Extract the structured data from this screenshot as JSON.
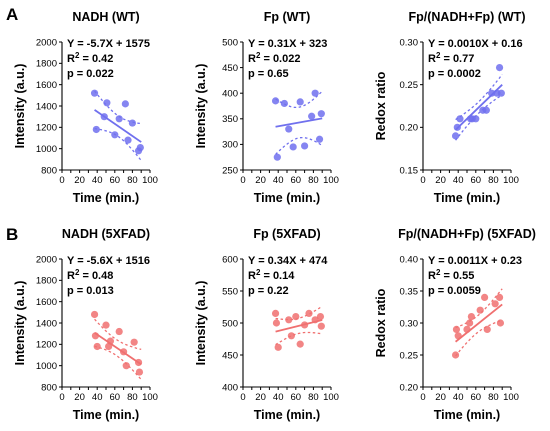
{
  "panel_labels": [
    "A",
    "B"
  ],
  "chart_data": [
    {
      "type": "scatter",
      "title": "NADH (WT)",
      "xlabel": "Time (min.)",
      "ylabel": "Intensity (a.u.)",
      "xlim": [
        0,
        100
      ],
      "ylim": [
        800,
        2000
      ],
      "xticks": [
        "0",
        "10",
        "20",
        "30",
        "40",
        "50",
        "60",
        "70",
        "80",
        "90",
        "100"
      ],
      "yticks": [
        "800",
        "1000",
        "1200",
        "1400",
        "1600",
        "1800",
        "2000"
      ],
      "series": [
        {
          "color": "#7070ee",
          "x": [
            37,
            39,
            48,
            51,
            60,
            65,
            72,
            75,
            80,
            87,
            89
          ],
          "y": [
            1520,
            1180,
            1300,
            1430,
            1130,
            1280,
            1420,
            1080,
            1240,
            980,
            1010
          ]
        }
      ],
      "fit": {
        "x0": 37,
        "x1": 90,
        "slope": -5.7,
        "intercept": 1575
      },
      "annotations": [
        "Y = -5.7X + 1575",
        "R",
        "2",
        " = 0.42",
        "p = 0.022"
      ],
      "grid": false
    },
    {
      "type": "scatter",
      "title": "Fp (WT)",
      "xlabel": "Time (min.)",
      "ylabel": "Intensity (a.u.)",
      "xlim": [
        0,
        100
      ],
      "ylim": [
        250,
        500
      ],
      "xticks": [
        "0",
        "10",
        "20",
        "30",
        "40",
        "50",
        "60",
        "70",
        "80",
        "90",
        "100"
      ],
      "yticks": [
        "250",
        "300",
        "350",
        "400",
        "450",
        "500"
      ],
      "series": [
        {
          "color": "#7070ee",
          "x": [
            37,
            39,
            47,
            52,
            57,
            65,
            70,
            78,
            82,
            87,
            89
          ],
          "y": [
            385,
            275,
            380,
            330,
            295,
            383,
            297,
            355,
            400,
            310,
            360
          ]
        }
      ],
      "fit": {
        "x0": 37,
        "x1": 90,
        "slope": 0.31,
        "intercept": 323
      },
      "annotations": [
        "Y = 0.31X + 323",
        "R",
        "2",
        " = 0.022",
        "p = 0.65"
      ],
      "grid": false
    },
    {
      "type": "scatter",
      "title": "Fp/(NADH+Fp) (WT)",
      "xlabel": "Time (min.)",
      "ylabel": "Redox ratio",
      "xlim": [
        0,
        100
      ],
      "ylim": [
        0.15,
        0.3
      ],
      "xticks": [
        "0",
        "10",
        "20",
        "30",
        "40",
        "50",
        "60",
        "70",
        "80",
        "90",
        "100"
      ],
      "yticks": [
        "0.15",
        "0.20",
        "0.25",
        "0.30"
      ],
      "series": [
        {
          "color": "#7070ee",
          "x": [
            37,
            39,
            42,
            54,
            56,
            60,
            68,
            72,
            78,
            84,
            87,
            89
          ],
          "y": [
            0.19,
            0.2,
            0.21,
            0.21,
            0.21,
            0.21,
            0.22,
            0.22,
            0.24,
            0.24,
            0.27,
            0.24
          ]
        }
      ],
      "fit": {
        "x0": 37,
        "x1": 90,
        "slope": 0.001,
        "intercept": 0.16
      },
      "annotations": [
        "Y = 0.0010X + 0.16",
        "R",
        "2",
        " = 0.77",
        "p = 0.0002"
      ],
      "grid": false
    },
    {
      "type": "scatter",
      "title": "NADH (5XFAD)",
      "xlabel": "Time (min.)",
      "ylabel": "Intensity (a.u.)",
      "xlim": [
        0,
        100
      ],
      "ylim": [
        800,
        2000
      ],
      "xticks": [
        "0",
        "10",
        "20",
        "30",
        "40",
        "50",
        "60",
        "70",
        "80",
        "90",
        "100"
      ],
      "yticks": [
        "800",
        "1000",
        "1200",
        "1400",
        "1600",
        "1800",
        "2000"
      ],
      "series": [
        {
          "color": "#f07070",
          "x": [
            37,
            38,
            40,
            50,
            53,
            55,
            65,
            70,
            73,
            82,
            87,
            88
          ],
          "y": [
            1480,
            1280,
            1180,
            1380,
            1180,
            1230,
            1320,
            1130,
            1000,
            1220,
            1030,
            940
          ]
        }
      ],
      "fit": {
        "x0": 37,
        "x1": 90,
        "slope": -5.6,
        "intercept": 1516
      },
      "annotations": [
        "Y = -5.6X + 1516",
        "R",
        "2",
        " = 0.48",
        "p = 0.013"
      ],
      "grid": false
    },
    {
      "type": "scatter",
      "title": "Fp (5XFAD)",
      "xlabel": "Time (min.)",
      "ylabel": "Intensity (a.u.)",
      "xlim": [
        0,
        100
      ],
      "ylim": [
        400,
        600
      ],
      "xticks": [
        "0",
        "10",
        "20",
        "30",
        "40",
        "50",
        "60",
        "70",
        "80",
        "90",
        "100"
      ],
      "yticks": [
        "400",
        "450",
        "500",
        "550",
        "600"
      ],
      "series": [
        {
          "color": "#f07070",
          "x": [
            37,
            38,
            40,
            52,
            55,
            60,
            65,
            70,
            75,
            82,
            88,
            89
          ],
          "y": [
            515,
            500,
            462,
            505,
            480,
            510,
            467,
            497,
            515,
            505,
            510,
            495
          ]
        }
      ],
      "fit": {
        "x0": 37,
        "x1": 90,
        "slope": 0.34,
        "intercept": 474
      },
      "annotations": [
        "Y = 0.34X + 474",
        "R",
        "2",
        " = 0.14",
        "p = 0.22"
      ],
      "grid": false
    },
    {
      "type": "scatter",
      "title": "Fp/(NADH+Fp) (5XFAD)",
      "xlabel": "Time (min.)",
      "ylabel": "Redox ratio",
      "xlim": [
        0,
        100
      ],
      "ylim": [
        0.2,
        0.4
      ],
      "xticks": [
        "0",
        "10",
        "20",
        "30",
        "40",
        "50",
        "60",
        "70",
        "80",
        "90",
        "100"
      ],
      "yticks": [
        "0.20",
        "0.25",
        "0.30",
        "0.35",
        "0.40"
      ],
      "series": [
        {
          "color": "#f07070",
          "x": [
            37,
            38,
            40,
            50,
            53,
            55,
            65,
            70,
            73,
            82,
            87,
            88
          ],
          "y": [
            0.25,
            0.29,
            0.28,
            0.29,
            0.3,
            0.31,
            0.32,
            0.34,
            0.29,
            0.33,
            0.34,
            0.3
          ]
        }
      ],
      "fit": {
        "x0": 37,
        "x1": 90,
        "slope": 0.0011,
        "intercept": 0.23
      },
      "annotations": [
        "Y = 0.0011X + 0.23",
        "R",
        "2",
        " = 0.55",
        "p = 0.0059"
      ],
      "grid": false
    }
  ]
}
